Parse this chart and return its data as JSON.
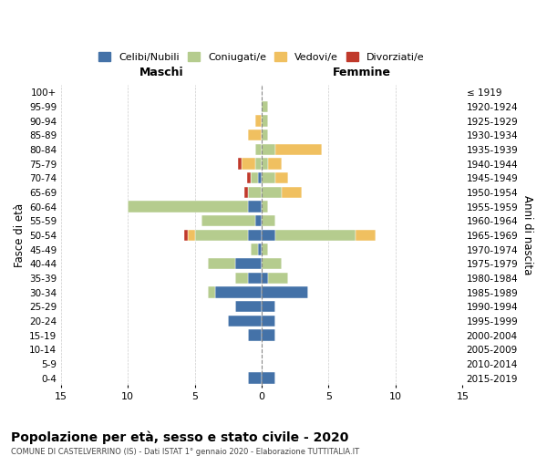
{
  "age_groups": [
    "0-4",
    "5-9",
    "10-14",
    "15-19",
    "20-24",
    "25-29",
    "30-34",
    "35-39",
    "40-44",
    "45-49",
    "50-54",
    "55-59",
    "60-64",
    "65-69",
    "70-74",
    "75-79",
    "80-84",
    "85-89",
    "90-94",
    "95-99",
    "100+"
  ],
  "birth_years": [
    "2015-2019",
    "2010-2014",
    "2005-2009",
    "2000-2004",
    "1995-1999",
    "1990-1994",
    "1985-1989",
    "1980-1984",
    "1975-1979",
    "1970-1974",
    "1965-1969",
    "1960-1964",
    "1955-1959",
    "1950-1954",
    "1945-1949",
    "1940-1944",
    "1935-1939",
    "1930-1934",
    "1925-1929",
    "1920-1924",
    "≤ 1919"
  ],
  "males": {
    "celibi": [
      1,
      0,
      0,
      1,
      2.5,
      2,
      3.5,
      1,
      2,
      0.3,
      1,
      0.5,
      1,
      0,
      0.3,
      0,
      0,
      0,
      0,
      0,
      0
    ],
    "coniugati": [
      0,
      0,
      0,
      0,
      0,
      0,
      0.5,
      1,
      2,
      0.5,
      4,
      4,
      9,
      1,
      0.5,
      0.5,
      0.5,
      0,
      0,
      0,
      0
    ],
    "vedovi": [
      0,
      0,
      0,
      0,
      0,
      0,
      0,
      0,
      0,
      0,
      0.5,
      0,
      0,
      0,
      0,
      1,
      0,
      1,
      0.5,
      0,
      0
    ],
    "divorziati": [
      0,
      0,
      0,
      0,
      0,
      0,
      0,
      0,
      0,
      0,
      0.3,
      0,
      0,
      0.3,
      0.3,
      0.3,
      0,
      0,
      0,
      0,
      0
    ]
  },
  "females": {
    "nubili": [
      1,
      0,
      0,
      1,
      1,
      1,
      3.5,
      0.5,
      0,
      0,
      1,
      0,
      0,
      0,
      0,
      0,
      0,
      0,
      0,
      0,
      0
    ],
    "coniugate": [
      0,
      0,
      0,
      0,
      0,
      0,
      0,
      1.5,
      1.5,
      0.5,
      6,
      1,
      0.5,
      1.5,
      1,
      0.5,
      1,
      0.5,
      0.5,
      0.5,
      0
    ],
    "vedove": [
      0,
      0,
      0,
      0,
      0,
      0,
      0,
      0,
      0,
      0,
      1.5,
      0,
      0,
      1.5,
      1,
      1,
      3.5,
      0,
      0,
      0,
      0
    ],
    "divorziate": [
      0,
      0,
      0,
      0,
      0,
      0,
      0,
      0,
      0,
      0,
      0,
      0,
      0,
      0,
      0,
      0,
      0,
      0,
      0,
      0,
      0
    ]
  },
  "colors": {
    "celibi": "#4472a8",
    "coniugati": "#b5cc8e",
    "vedovi": "#f0c060",
    "divorziati": "#c0392b"
  },
  "title": "Popolazione per età, sesso e stato civile - 2020",
  "subtitle": "COMUNE DI CASTELVERRINO (IS) - Dati ISTAT 1° gennaio 2020 - Elaborazione TUTTITALIA.IT",
  "xlabel_left": "Maschi",
  "xlabel_right": "Femmine",
  "ylabel_left": "Fasce di età",
  "ylabel_right": "Anni di nascita",
  "xlim": 15,
  "legend_labels": [
    "Celibi/Nubili",
    "Coniugati/e",
    "Vedovi/e",
    "Divorziati/e"
  ],
  "background_color": "#ffffff",
  "grid_color": "#cccccc"
}
